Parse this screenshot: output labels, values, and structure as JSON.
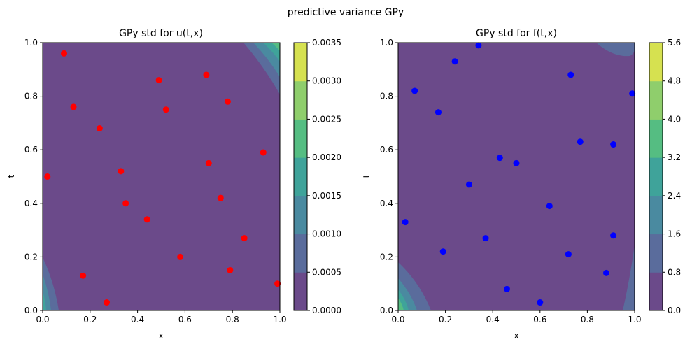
{
  "figure": {
    "suptitle": "predictive variance GPy"
  },
  "colors": {
    "levels": [
      "#6b4a8a",
      "#5a6c9c",
      "#4a8aa0",
      "#3fa39a",
      "#55bd82",
      "#8fce6c",
      "#d6e150"
    ],
    "u_points": "#ff0000",
    "f_points": "#0000ff"
  },
  "chart_data": [
    {
      "type": "scatter",
      "title": "GPy std for u(t,x)",
      "xlabel": "x",
      "ylabel": "t",
      "xlim": [
        0,
        1
      ],
      "ylim": [
        0,
        1
      ],
      "x_ticks": [
        "0.0",
        "0.2",
        "0.4",
        "0.6",
        "0.8",
        "1.0"
      ],
      "y_ticks": [
        "0.0",
        "0.2",
        "0.4",
        "0.6",
        "0.8",
        "1.0"
      ],
      "colorbar_ticks": [
        "0.0000",
        "0.0005",
        "0.0010",
        "0.0015",
        "0.0020",
        "0.0025",
        "0.0030",
        "0.0035"
      ],
      "colorbar_range": [
        0,
        0.0035
      ],
      "points": [
        [
          0.09,
          0.96
        ],
        [
          0.13,
          0.76
        ],
        [
          0.24,
          0.68
        ],
        [
          0.02,
          0.5
        ],
        [
          0.33,
          0.52
        ],
        [
          0.35,
          0.4
        ],
        [
          0.44,
          0.34
        ],
        [
          0.17,
          0.13
        ],
        [
          0.27,
          0.03
        ],
        [
          0.49,
          0.86
        ],
        [
          0.52,
          0.75
        ],
        [
          0.58,
          0.2
        ],
        [
          0.69,
          0.88
        ],
        [
          0.7,
          0.55
        ],
        [
          0.75,
          0.42
        ],
        [
          0.78,
          0.78
        ],
        [
          0.79,
          0.15
        ],
        [
          0.85,
          0.27
        ],
        [
          0.93,
          0.59
        ],
        [
          0.99,
          0.1
        ]
      ]
    },
    {
      "type": "scatter",
      "title": "GPy std for f(t,x)",
      "xlabel": "x",
      "ylabel": "t",
      "xlim": [
        0,
        1
      ],
      "ylim": [
        0,
        1
      ],
      "x_ticks": [
        "0.0",
        "0.2",
        "0.4",
        "0.6",
        "0.8",
        "1.0"
      ],
      "y_ticks": [
        "0.0",
        "0.2",
        "0.4",
        "0.6",
        "0.8",
        "1.0"
      ],
      "colorbar_ticks": [
        "0.0",
        "0.8",
        "1.6",
        "2.4",
        "3.2",
        "4.0",
        "4.8",
        "5.6"
      ],
      "colorbar_range": [
        0,
        5.6
      ],
      "points": [
        [
          0.34,
          0.99
        ],
        [
          0.24,
          0.93
        ],
        [
          0.07,
          0.82
        ],
        [
          0.17,
          0.74
        ],
        [
          0.73,
          0.88
        ],
        [
          0.99,
          0.81
        ],
        [
          0.77,
          0.63
        ],
        [
          0.91,
          0.62
        ],
        [
          0.43,
          0.57
        ],
        [
          0.5,
          0.55
        ],
        [
          0.3,
          0.47
        ],
        [
          0.64,
          0.39
        ],
        [
          0.03,
          0.33
        ],
        [
          0.37,
          0.27
        ],
        [
          0.91,
          0.28
        ],
        [
          0.19,
          0.22
        ],
        [
          0.72,
          0.21
        ],
        [
          0.88,
          0.14
        ],
        [
          0.46,
          0.08
        ],
        [
          0.6,
          0.03
        ]
      ]
    }
  ]
}
